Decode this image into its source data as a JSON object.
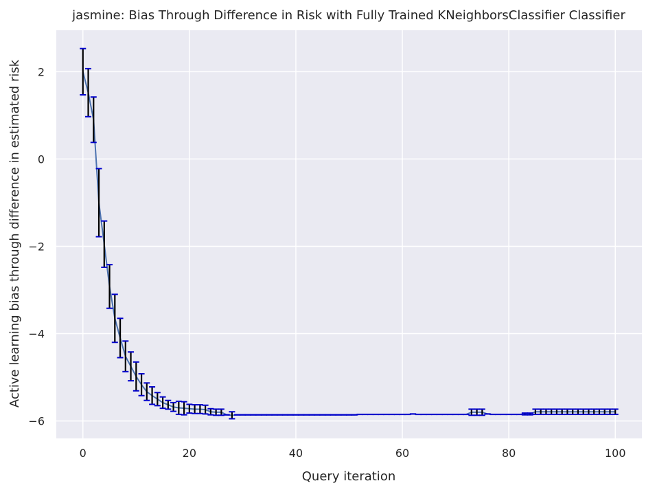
{
  "chart_data": {
    "type": "line",
    "title": "jasmine: Bias Through Difference in Risk with Fully Trained KNeighborsClassifier Classifier",
    "xlabel": "Query iteration",
    "ylabel": "Active learning bias through difference in estimated risk",
    "xlim": [
      -5,
      105
    ],
    "ylim": [
      -6.4,
      2.95
    ],
    "xticks": [
      0,
      20,
      40,
      60,
      80,
      100
    ],
    "yticks": [
      -6,
      -4,
      -2,
      0,
      2
    ],
    "grid": true,
    "colors": {
      "background": "#eaeaf2",
      "grid": "#ffffff",
      "line": "#4c72b0",
      "errorbar": "#000000",
      "cap": "#0000cc"
    },
    "series": [
      {
        "x": [
          0,
          1,
          2,
          3,
          4,
          5,
          6,
          7,
          8,
          9,
          10,
          11,
          12,
          13,
          14,
          15,
          16,
          17,
          18,
          19,
          20,
          21,
          22,
          23,
          24,
          25,
          26,
          27,
          28,
          29,
          30,
          31,
          32,
          33,
          34,
          35,
          36,
          37,
          38,
          39,
          40,
          41,
          42,
          43,
          44,
          45,
          46,
          47,
          48,
          49,
          50,
          51,
          52,
          53,
          54,
          55,
          56,
          57,
          58,
          59,
          60,
          61,
          62,
          63,
          64,
          65,
          66,
          67,
          68,
          69,
          70,
          71,
          72,
          73,
          74,
          75,
          76,
          77,
          78,
          79,
          80,
          81,
          82,
          83,
          84,
          85,
          86,
          87,
          88,
          89,
          90,
          91,
          92,
          93,
          94,
          95,
          96,
          97,
          98,
          99,
          100
        ],
        "y": [
          2.0,
          1.52,
          0.9,
          -1.0,
          -1.95,
          -2.92,
          -3.65,
          -4.1,
          -4.52,
          -4.75,
          -4.98,
          -5.17,
          -5.33,
          -5.42,
          -5.5,
          -5.58,
          -5.63,
          -5.68,
          -5.7,
          -5.71,
          -5.72,
          -5.73,
          -5.73,
          -5.74,
          -5.79,
          -5.8,
          -5.8,
          -5.86,
          -5.87,
          -5.86,
          -5.86,
          -5.86,
          -5.86,
          -5.86,
          -5.86,
          -5.86,
          -5.86,
          -5.86,
          -5.86,
          -5.86,
          -5.86,
          -5.86,
          -5.86,
          -5.86,
          -5.86,
          -5.86,
          -5.86,
          -5.86,
          -5.86,
          -5.86,
          -5.86,
          -5.86,
          -5.85,
          -5.85,
          -5.85,
          -5.85,
          -5.85,
          -5.85,
          -5.85,
          -5.85,
          -5.85,
          -5.85,
          -5.84,
          -5.85,
          -5.85,
          -5.85,
          -5.85,
          -5.85,
          -5.85,
          -5.85,
          -5.85,
          -5.85,
          -5.85,
          -5.8,
          -5.8,
          -5.8,
          -5.84,
          -5.85,
          -5.85,
          -5.85,
          -5.85,
          -5.85,
          -5.85,
          -5.84,
          -5.84,
          -5.79,
          -5.79,
          -5.79,
          -5.79,
          -5.79,
          -5.79,
          -5.79,
          -5.79,
          -5.79,
          -5.79,
          -5.79,
          -5.79,
          -5.79,
          -5.79,
          -5.79,
          -5.79
        ],
        "err": [
          0.53,
          0.55,
          0.52,
          0.78,
          0.53,
          0.5,
          0.55,
          0.45,
          0.35,
          0.33,
          0.33,
          0.25,
          0.2,
          0.2,
          0.15,
          0.13,
          0.1,
          0.1,
          0.15,
          0.15,
          0.1,
          0.1,
          0.1,
          0.1,
          0.07,
          0.07,
          0.07,
          0.0,
          0.08,
          0.0,
          0.0,
          0.0,
          0.0,
          0.0,
          0.0,
          0.0,
          0.0,
          0.0,
          0.0,
          0.0,
          0.0,
          0.0,
          0.0,
          0.0,
          0.0,
          0.0,
          0.0,
          0.0,
          0.0,
          0.0,
          0.0,
          0.0,
          0.0,
          0.0,
          0.0,
          0.0,
          0.0,
          0.0,
          0.0,
          0.0,
          0.0,
          0.0,
          0.0,
          0.0,
          0.0,
          0.0,
          0.0,
          0.0,
          0.0,
          0.0,
          0.0,
          0.0,
          0.0,
          0.07,
          0.07,
          0.07,
          0.0,
          0.0,
          0.0,
          0.0,
          0.0,
          0.0,
          0.0,
          0.02,
          0.02,
          0.06,
          0.06,
          0.06,
          0.06,
          0.06,
          0.06,
          0.06,
          0.06,
          0.06,
          0.06,
          0.06,
          0.06,
          0.06,
          0.06,
          0.06,
          0.06
        ]
      }
    ]
  }
}
